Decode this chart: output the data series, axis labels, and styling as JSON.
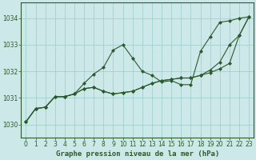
{
  "title": "Graphe pression niveau de la mer (hPa)",
  "bg_color": "#cce8e8",
  "grid_color": "#99cccc",
  "line_color": "#2d5a2d",
  "xlim": [
    -0.5,
    23.5
  ],
  "ylim": [
    1029.5,
    1034.6
  ],
  "yticks": [
    1030,
    1031,
    1032,
    1033,
    1034
  ],
  "xticks": [
    0,
    1,
    2,
    3,
    4,
    5,
    6,
    7,
    8,
    9,
    10,
    11,
    12,
    13,
    14,
    15,
    16,
    17,
    18,
    19,
    20,
    21,
    22,
    23
  ],
  "series": [
    [
      1030.1,
      1030.6,
      1030.65,
      1031.05,
      1031.05,
      1031.15,
      1031.55,
      1031.9,
      1032.15,
      1032.8,
      1033.0,
      1032.5,
      1032.0,
      1031.85,
      1031.6,
      1031.65,
      1031.5,
      1031.5,
      1032.75,
      1033.3,
      1033.85,
      1033.9,
      1034.0,
      1034.05
    ],
    [
      1030.1,
      1030.6,
      1030.65,
      1031.05,
      1031.05,
      1031.15,
      1031.35,
      1031.4,
      1031.25,
      1031.15,
      1031.2,
      1031.25,
      1031.4,
      1031.55,
      1031.65,
      1031.7,
      1031.75,
      1031.75,
      1031.85,
      1032.05,
      1032.35,
      1033.0,
      1033.35,
      1034.05
    ],
    [
      1030.1,
      1030.6,
      1030.65,
      1031.05,
      1031.05,
      1031.15,
      1031.35,
      1031.4,
      1031.25,
      1031.15,
      1031.2,
      1031.25,
      1031.4,
      1031.55,
      1031.65,
      1031.7,
      1031.75,
      1031.75,
      1031.85,
      1031.95,
      1032.1,
      1032.3,
      1033.35,
      1034.05
    ]
  ],
  "marker": "D",
  "markersize": 2.0,
  "linewidth": 0.8,
  "xlabel_fontsize": 6.5,
  "tick_fontsize": 5.5
}
